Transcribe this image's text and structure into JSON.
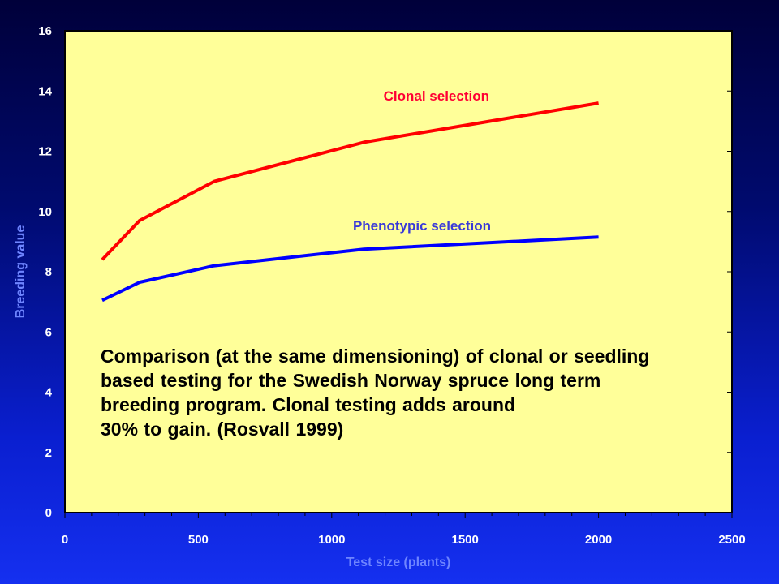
{
  "colors": {
    "plot_background": "#ffff99",
    "clonal": "#ff0000",
    "phenotypic": "#0000ff",
    "clonal_label": "#ff0033",
    "phenotypic_label": "#3a3ad8",
    "axis_title": "#6f85ff"
  },
  "chart_data": {
    "type": "line",
    "xlabel": "Test size (plants)",
    "ylabel": "Breeding value",
    "xlim": [
      0,
      2500
    ],
    "ylim": [
      0,
      16
    ],
    "x_ticks": [
      "0",
      "500",
      "1000",
      "1500",
      "2000",
      "2500"
    ],
    "y_ticks": [
      "0",
      "2",
      "4",
      "6",
      "8",
      "10",
      "12",
      "14",
      "16"
    ],
    "grid": false,
    "series": [
      {
        "name": "Clonal selection",
        "x": [
          140,
          280,
          560,
          1120,
          2000
        ],
        "y": [
          8.4,
          9.7,
          11.0,
          12.3,
          13.6
        ]
      },
      {
        "name": "Phenotypic selection",
        "x": [
          140,
          280,
          560,
          1120,
          2000
        ],
        "y": [
          7.05,
          7.65,
          8.2,
          8.75,
          9.15
        ]
      }
    ],
    "annotation": [
      "Comparison (at the same dimensioning)  of clonal or seedling",
      "based testing for the Swedish Norway spruce long term",
      "breeding program. Clonal testing adds around",
      "30% to gain. (Rosvall 1999)"
    ]
  }
}
